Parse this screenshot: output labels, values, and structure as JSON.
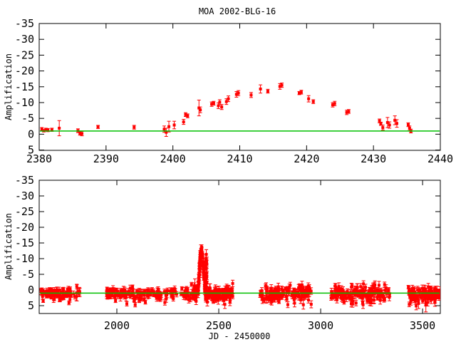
{
  "title": "MOA 2002-BLG-16",
  "colors": {
    "points": "#ff0000",
    "baseline_line": "#00c000",
    "axis": "#000000",
    "background": "#ffffff"
  },
  "chart_data": [
    {
      "type": "scatter",
      "panel": "top",
      "ylabel": "Amplification",
      "xlim": [
        2380,
        2440
      ],
      "ylim_display": [
        -35,
        5.1
      ],
      "xticks": [
        2380,
        2390,
        2400,
        2410,
        2420,
        2430,
        2440
      ],
      "yticks": [
        -35,
        -30,
        -25,
        -20,
        -15,
        -10,
        -5,
        0,
        5
      ],
      "baseline_value": -1,
      "marker": "square",
      "error_bars": true,
      "points": [
        [
          2379.7,
          -1.3,
          0.8
        ],
        [
          2380.4,
          -1.6,
          0.5
        ],
        [
          2380.7,
          -1.1,
          0.4
        ],
        [
          2381.0,
          -1.5,
          0.4
        ],
        [
          2381.3,
          -1.3,
          0.5
        ],
        [
          2381.9,
          -1.4,
          0.5
        ],
        [
          2383.0,
          -1.9,
          2.4
        ],
        [
          2385.8,
          -1.1,
          0.6
        ],
        [
          2386.1,
          -0.3,
          0.6
        ],
        [
          2386.4,
          -0.2,
          0.7
        ],
        [
          2388.8,
          -2.3,
          0.5
        ],
        [
          2394.2,
          -2.2,
          0.6
        ],
        [
          2398.7,
          -1.6,
          1.0
        ],
        [
          2399.0,
          -0.6,
          1.3
        ],
        [
          2399.4,
          -2.4,
          1.7
        ],
        [
          2400.2,
          -2.9,
          1.2
        ],
        [
          2401.6,
          -3.9,
          0.8
        ],
        [
          2401.9,
          -6.2,
          0.6
        ],
        [
          2402.2,
          -5.8,
          0.6
        ],
        [
          2403.9,
          -8.3,
          2.5
        ],
        [
          2404.1,
          -7.7,
          0.9
        ],
        [
          2405.8,
          -9.5,
          0.7
        ],
        [
          2406.1,
          -9.8,
          0.6
        ],
        [
          2406.8,
          -9.0,
          0.9
        ],
        [
          2407.0,
          -10.1,
          0.8
        ],
        [
          2407.3,
          -8.6,
          0.8
        ],
        [
          2408.0,
          -10.3,
          0.9
        ],
        [
          2408.3,
          -11.2,
          0.9
        ],
        [
          2409.5,
          -12.6,
          0.9
        ],
        [
          2409.8,
          -13.0,
          0.8
        ],
        [
          2411.7,
          -12.4,
          0.8
        ],
        [
          2413.1,
          -14.3,
          1.3
        ],
        [
          2414.2,
          -13.6,
          0.6
        ],
        [
          2416.0,
          -15.1,
          0.9
        ],
        [
          2416.3,
          -15.5,
          0.7
        ],
        [
          2418.9,
          -13.0,
          0.5
        ],
        [
          2419.2,
          -13.3,
          0.6
        ],
        [
          2420.3,
          -11.2,
          1.0
        ],
        [
          2421.0,
          -10.3,
          0.6
        ],
        [
          2423.9,
          -9.3,
          0.7
        ],
        [
          2424.2,
          -9.7,
          0.7
        ],
        [
          2426.0,
          -6.9,
          0.7
        ],
        [
          2426.3,
          -7.2,
          0.6
        ],
        [
          2430.9,
          -4.2,
          0.6
        ],
        [
          2431.1,
          -3.3,
          0.5
        ],
        [
          2431.4,
          -2.1,
          0.8
        ],
        [
          2432.1,
          -3.7,
          1.6
        ],
        [
          2432.4,
          -2.9,
          1.0
        ],
        [
          2433.2,
          -4.4,
          1.4
        ],
        [
          2433.5,
          -3.4,
          1.2
        ],
        [
          2435.2,
          -3.0,
          0.6
        ],
        [
          2435.4,
          -1.9,
          0.7
        ],
        [
          2435.6,
          -1.0,
          0.6
        ]
      ]
    },
    {
      "type": "scatter",
      "panel": "bottom",
      "xlabel": "JD - 2450000",
      "ylabel": "Amplification",
      "xlim": [
        1619,
        3587
      ],
      "ylim_display": [
        -35,
        7.5
      ],
      "xticks": [
        2000,
        2500,
        3000,
        3500
      ],
      "yticks": [
        -35,
        -30,
        -25,
        -20,
        -15,
        -10,
        -5,
        0,
        5
      ],
      "baseline_value": 1,
      "marker": "square",
      "error_bars": true,
      "clusters": [
        {
          "x0": 1628,
          "x1": 1778,
          "n": 80,
          "mean": 1.2,
          "sd": 0.9,
          "err": 0.7
        },
        {
          "x0": 1786,
          "x1": 1822,
          "n": 9,
          "mean": 0.9,
          "sd": 0.8,
          "err": 1.0
        },
        {
          "x0": 1950,
          "x1": 2028,
          "n": 40,
          "mean": 1.1,
          "sd": 0.9,
          "err": 0.8
        },
        {
          "x0": 2032,
          "x1": 2300,
          "n": 110,
          "mean": 1.3,
          "sd": 0.9,
          "err": 0.8
        },
        {
          "x0": 2315,
          "x1": 2397,
          "n": 38,
          "mean": 1.2,
          "sd": 1.0,
          "err": 0.9
        },
        {
          "x0": 2424,
          "x1": 2442,
          "n": 26,
          "mean": -5.0,
          "sd": 2.8,
          "err": 1.2
        },
        {
          "x0": 2436,
          "x1": 2570,
          "n": 110,
          "mean": 1.4,
          "sd": 1.2,
          "err": 1.0
        },
        {
          "x0": 2700,
          "x1": 2955,
          "n": 150,
          "mean": 1.3,
          "sd": 1.1,
          "err": 0.9
        },
        {
          "x0": 3048,
          "x1": 3340,
          "n": 160,
          "mean": 1.3,
          "sd": 1.2,
          "err": 0.9
        },
        {
          "x0": 3430,
          "x1": 3588,
          "n": 110,
          "mean": 1.2,
          "sd": 1.2,
          "err": 0.9
        }
      ],
      "outliers": [
        [
          1804,
          0.9,
          2.6
        ],
        [
          2049,
          4.4,
          0.7
        ],
        [
          2090,
          4.7,
          0.7
        ],
        [
          2140,
          3.9,
          0.6
        ],
        [
          2530,
          4.6,
          1.3
        ],
        [
          2555,
          3.9,
          1.1
        ],
        [
          2760,
          3.8,
          1.0
        ],
        [
          2872,
          4.2,
          1.2
        ],
        [
          2915,
          4.7,
          1.4
        ],
        [
          3150,
          4.4,
          1.0
        ],
        [
          3208,
          4.7,
          1.2
        ],
        [
          3248,
          4.1,
          1.0
        ],
        [
          3480,
          4.3,
          1.6
        ],
        [
          3516,
          4.8,
          2.2
        ],
        [
          3560,
          4.0,
          1.2
        ]
      ],
      "peak_from_panel": 0,
      "peak_shift": 2.0,
      "peak_noise": 0.9
    }
  ]
}
